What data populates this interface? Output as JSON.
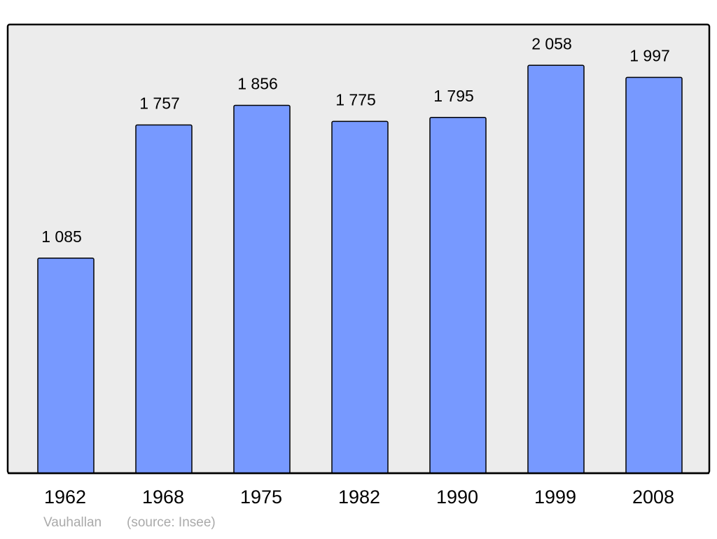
{
  "chart_data": {
    "type": "bar",
    "categories": [
      "1962",
      "1968",
      "1975",
      "1982",
      "1990",
      "1999",
      "2008"
    ],
    "values": [
      1085,
      1757,
      1856,
      1775,
      1795,
      2058,
      1997
    ],
    "value_labels": [
      "1 085",
      "1 757",
      "1 856",
      "1 775",
      "1 795",
      "2 058",
      "1 997"
    ],
    "color": "#7799ff",
    "place": "Vauhallan",
    "source": "(source: Insee)"
  }
}
